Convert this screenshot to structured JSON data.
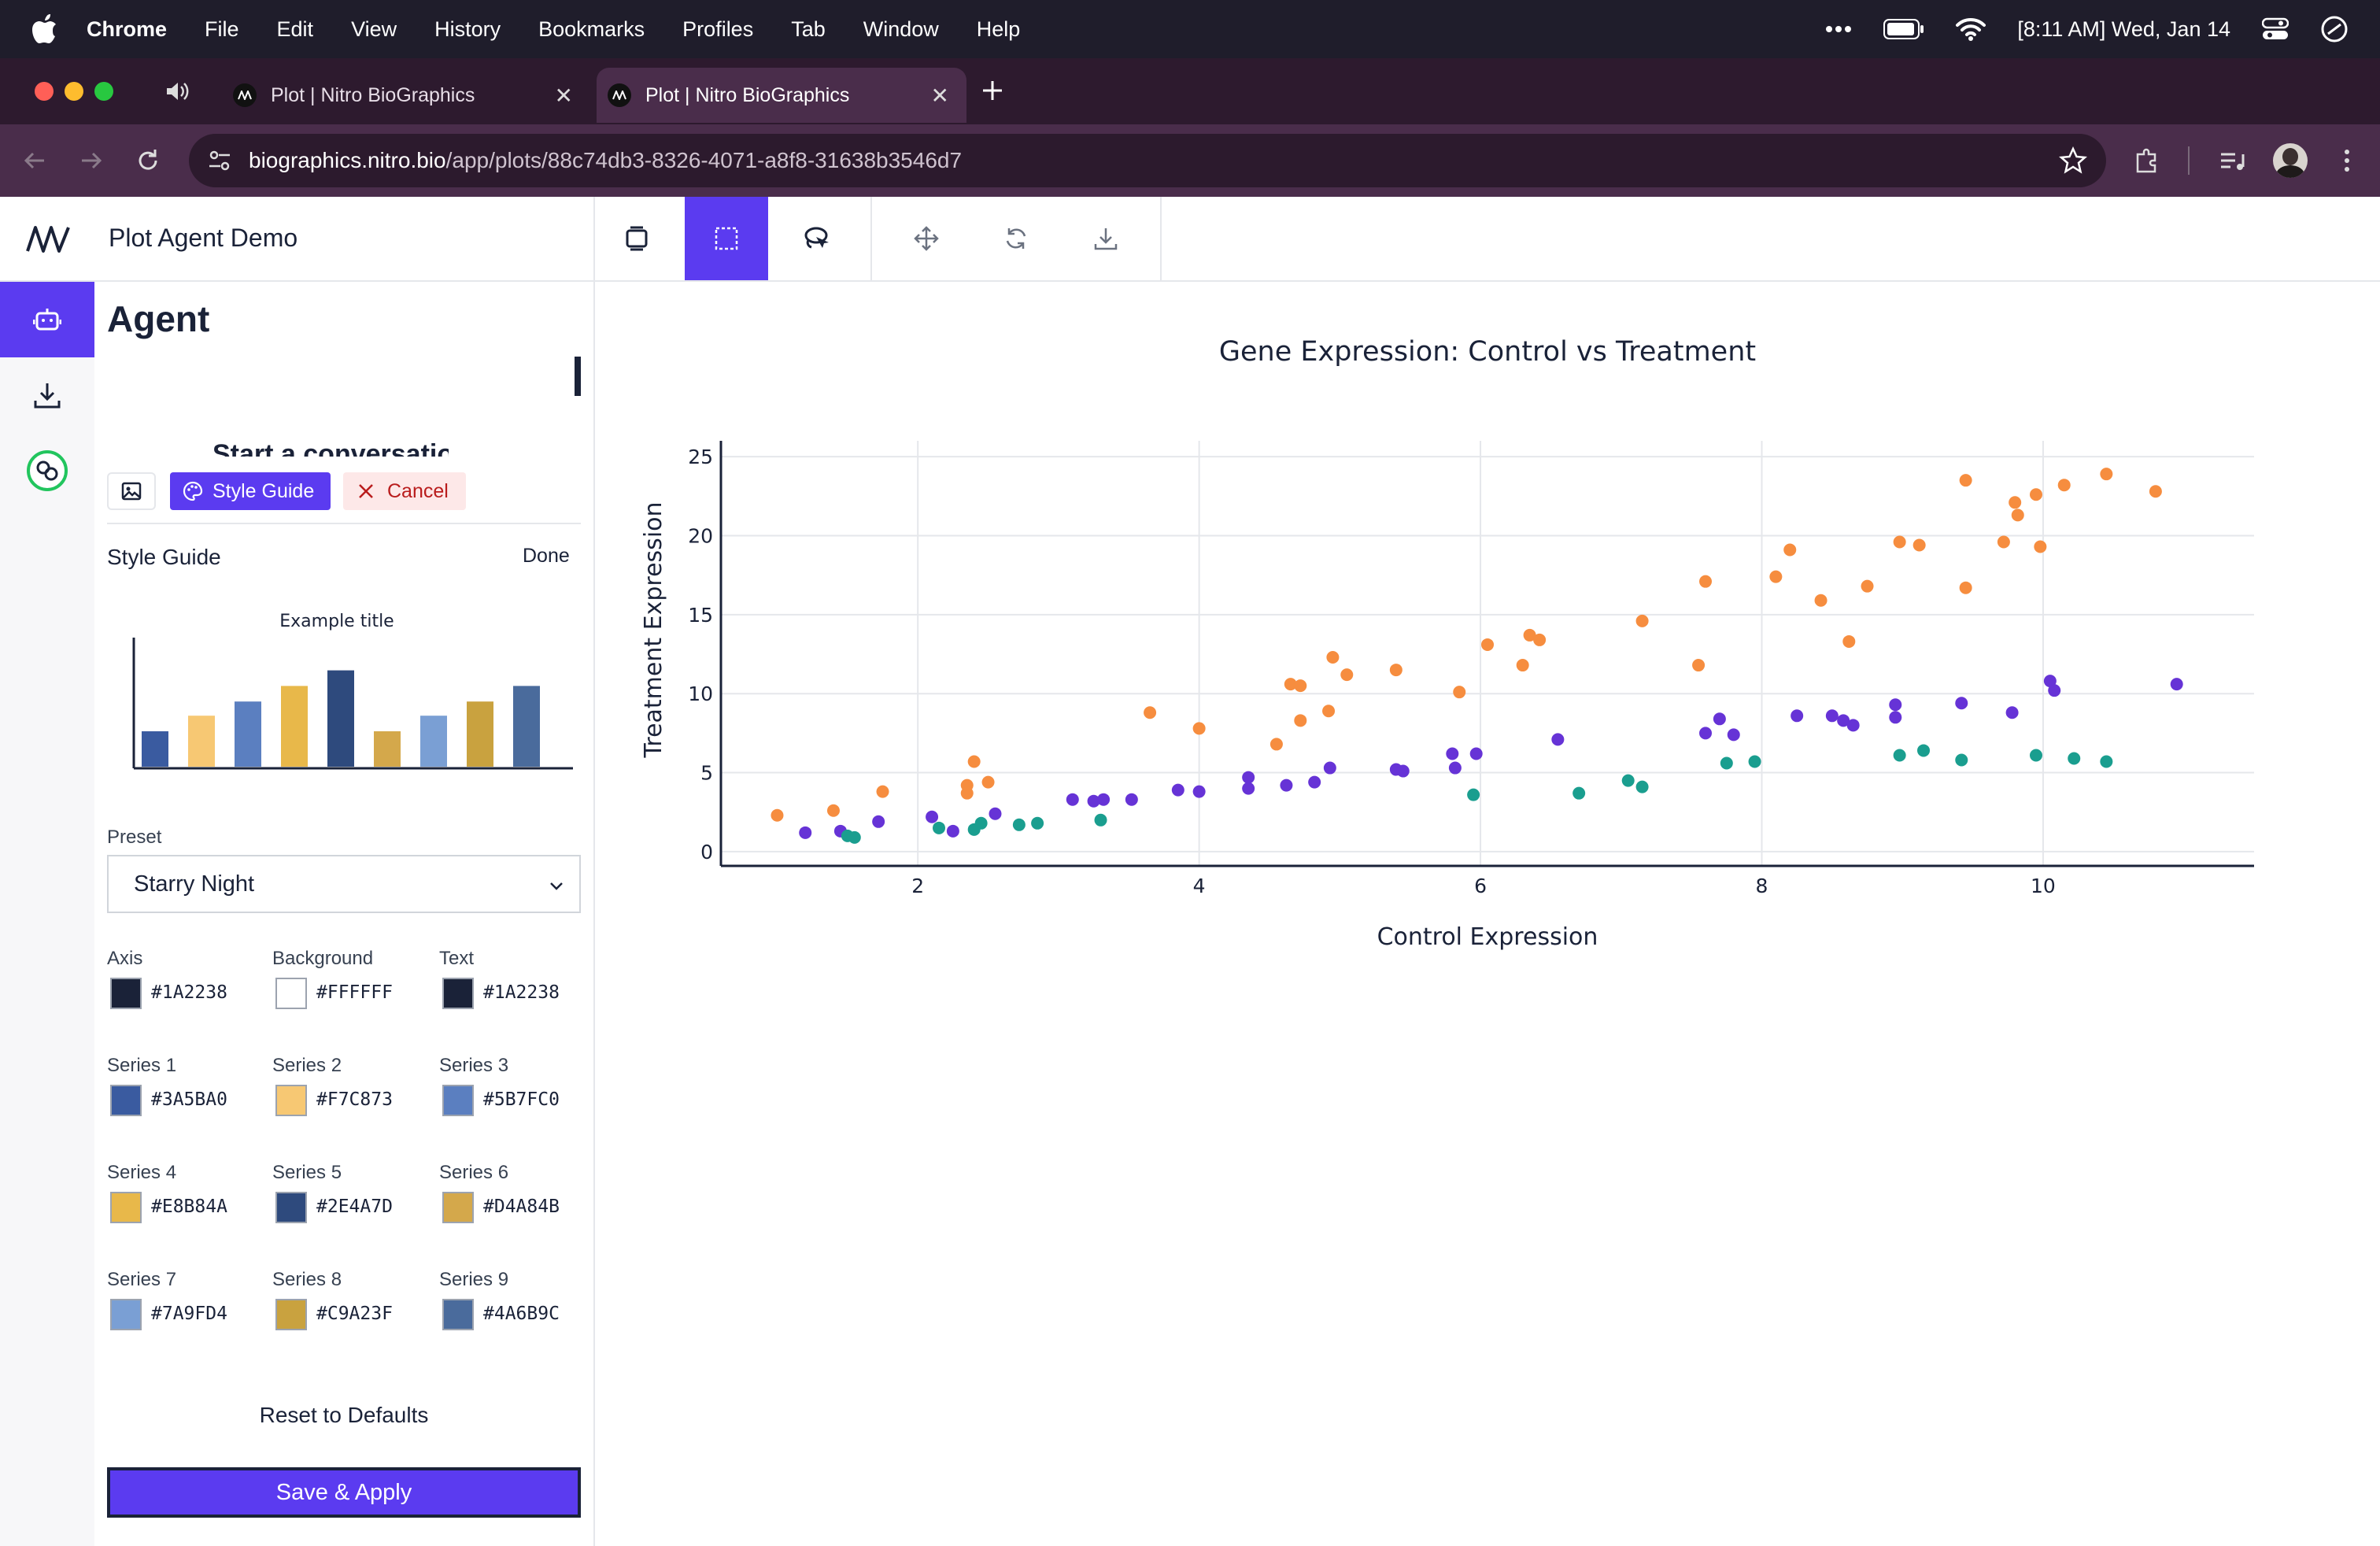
{
  "menubar": {
    "app_name": "Chrome",
    "items": [
      "File",
      "Edit",
      "View",
      "History",
      "Bookmarks",
      "Profiles",
      "Tab",
      "Window",
      "Help"
    ],
    "clock": "[8:11 AM] Wed, Jan 14"
  },
  "browser": {
    "tabs": [
      {
        "title": "Plot | Nitro BioGraphics",
        "active": false
      },
      {
        "title": "Plot | Nitro BioGraphics",
        "active": true
      }
    ],
    "url_host": "biographics.nitro.bio",
    "url_path": "/app/plots/88c74db3-8326-4071-a8f8-31638b3546d7"
  },
  "app": {
    "title": "Plot Agent Demo"
  },
  "agent_panel": {
    "title": "Agent",
    "conversation_hint": "Start a conversation",
    "style_guide_button": "Style Guide",
    "cancel_button": "Cancel"
  },
  "style_guide": {
    "title": "Style Guide",
    "done_label": "Done",
    "example_title": "Example title",
    "preset_label": "Preset",
    "preset_value": "Starry Night",
    "reset_label": "Reset to Defaults",
    "save_label": "Save & Apply",
    "colors": [
      {
        "label": "Axis",
        "hex": "#1A2238"
      },
      {
        "label": "Background",
        "hex": "#FFFFFF"
      },
      {
        "label": "Text",
        "hex": "#1A2238"
      },
      {
        "label": "Series 1",
        "hex": "#3A5BA0"
      },
      {
        "label": "Series 2",
        "hex": "#F7C873"
      },
      {
        "label": "Series 3",
        "hex": "#5B7FC0"
      },
      {
        "label": "Series 4",
        "hex": "#E8B84A"
      },
      {
        "label": "Series 5",
        "hex": "#2E4A7D"
      },
      {
        "label": "Series 6",
        "hex": "#D4A84B"
      },
      {
        "label": "Series 7",
        "hex": "#7A9FD4"
      },
      {
        "label": "Series 8",
        "hex": "#C9A23F"
      },
      {
        "label": "Series 9",
        "hex": "#4A6B9C"
      }
    ],
    "example_bars": [
      {
        "value": 0.25,
        "color": "#3A5BA0"
      },
      {
        "value": 0.36,
        "color": "#F7C873"
      },
      {
        "value": 0.46,
        "color": "#5B7FC0"
      },
      {
        "value": 0.57,
        "color": "#E8B84A"
      },
      {
        "value": 0.68,
        "color": "#2E4A7D"
      },
      {
        "value": 0.25,
        "color": "#D4A84B"
      },
      {
        "value": 0.36,
        "color": "#7A9FD4"
      },
      {
        "value": 0.46,
        "color": "#C9A23F"
      },
      {
        "value": 0.57,
        "color": "#4A6B9C"
      }
    ]
  },
  "chart_data": {
    "type": "scatter",
    "title": "Gene Expression: Control vs Treatment",
    "xlabel": "Control Expression",
    "ylabel": "Treatment Expression",
    "xlim": [
      0.6,
      11.5
    ],
    "ylim": [
      -0.9,
      26
    ],
    "xticks": [
      2,
      4,
      6,
      8,
      10
    ],
    "yticks": [
      0,
      5,
      10,
      15,
      20,
      25
    ],
    "series": [
      {
        "name": "orange",
        "color": "#F68D3F",
        "points": [
          [
            1.0,
            2.3
          ],
          [
            1.4,
            2.6
          ],
          [
            1.75,
            3.8
          ],
          [
            2.35,
            4.2
          ],
          [
            2.4,
            5.7
          ],
          [
            2.35,
            3.7
          ],
          [
            2.5,
            4.4
          ],
          [
            3.65,
            8.8
          ],
          [
            4.0,
            7.8
          ],
          [
            4.55,
            6.8
          ],
          [
            4.65,
            10.6
          ],
          [
            4.72,
            10.5
          ],
          [
            4.72,
            8.3
          ],
          [
            4.92,
            8.9
          ],
          [
            4.95,
            12.3
          ],
          [
            5.05,
            11.2
          ],
          [
            5.4,
            11.5
          ],
          [
            5.85,
            10.1
          ],
          [
            6.05,
            13.1
          ],
          [
            6.3,
            11.8
          ],
          [
            6.35,
            13.7
          ],
          [
            6.42,
            13.4
          ],
          [
            7.15,
            14.6
          ],
          [
            7.55,
            11.8
          ],
          [
            7.6,
            17.1
          ],
          [
            8.1,
            17.4
          ],
          [
            8.2,
            19.1
          ],
          [
            8.42,
            15.9
          ],
          [
            8.62,
            13.3
          ],
          [
            8.75,
            16.8
          ],
          [
            8.98,
            19.6
          ],
          [
            9.12,
            19.4
          ],
          [
            9.45,
            23.5
          ],
          [
            9.45,
            16.7
          ],
          [
            9.72,
            19.6
          ],
          [
            9.8,
            22.1
          ],
          [
            9.82,
            21.3
          ],
          [
            9.95,
            22.6
          ],
          [
            9.98,
            19.3
          ],
          [
            10.15,
            23.2
          ],
          [
            10.45,
            23.9
          ],
          [
            10.8,
            22.8
          ]
        ]
      },
      {
        "name": "purple",
        "color": "#6633D6",
        "points": [
          [
            1.2,
            1.2
          ],
          [
            1.45,
            1.3
          ],
          [
            1.72,
            1.9
          ],
          [
            2.1,
            2.2
          ],
          [
            2.25,
            1.3
          ],
          [
            2.55,
            2.4
          ],
          [
            3.1,
            3.3
          ],
          [
            3.25,
            3.2
          ],
          [
            3.32,
            3.3
          ],
          [
            3.52,
            3.3
          ],
          [
            3.85,
            3.9
          ],
          [
            4.0,
            3.8
          ],
          [
            4.35,
            4.7
          ],
          [
            4.35,
            4.0
          ],
          [
            4.62,
            4.2
          ],
          [
            4.82,
            4.4
          ],
          [
            4.93,
            5.3
          ],
          [
            5.4,
            5.2
          ],
          [
            5.45,
            5.1
          ],
          [
            5.8,
            6.2
          ],
          [
            5.82,
            5.3
          ],
          [
            5.97,
            6.2
          ],
          [
            6.55,
            7.1
          ],
          [
            7.6,
            7.5
          ],
          [
            7.7,
            8.4
          ],
          [
            7.8,
            7.4
          ],
          [
            8.25,
            8.6
          ],
          [
            8.5,
            8.6
          ],
          [
            8.58,
            8.3
          ],
          [
            8.65,
            8.0
          ],
          [
            8.95,
            9.3
          ],
          [
            8.95,
            8.5
          ],
          [
            9.42,
            9.4
          ],
          [
            9.78,
            8.8
          ],
          [
            10.05,
            10.8
          ],
          [
            10.08,
            10.2
          ],
          [
            10.95,
            10.6
          ]
        ]
      },
      {
        "name": "teal",
        "color": "#1A9E8F",
        "points": [
          [
            1.5,
            1.0
          ],
          [
            1.55,
            0.9
          ],
          [
            2.15,
            1.5
          ],
          [
            2.4,
            1.4
          ],
          [
            2.45,
            1.8
          ],
          [
            2.72,
            1.7
          ],
          [
            2.85,
            1.8
          ],
          [
            3.3,
            2.0
          ],
          [
            5.95,
            3.6
          ],
          [
            6.7,
            3.7
          ],
          [
            7.05,
            4.5
          ],
          [
            7.15,
            4.1
          ],
          [
            7.75,
            5.6
          ],
          [
            7.95,
            5.7
          ],
          [
            8.98,
            6.1
          ],
          [
            9.15,
            6.4
          ],
          [
            9.42,
            5.8
          ],
          [
            9.95,
            6.1
          ],
          [
            10.22,
            5.9
          ],
          [
            10.45,
            5.7
          ]
        ]
      }
    ]
  }
}
